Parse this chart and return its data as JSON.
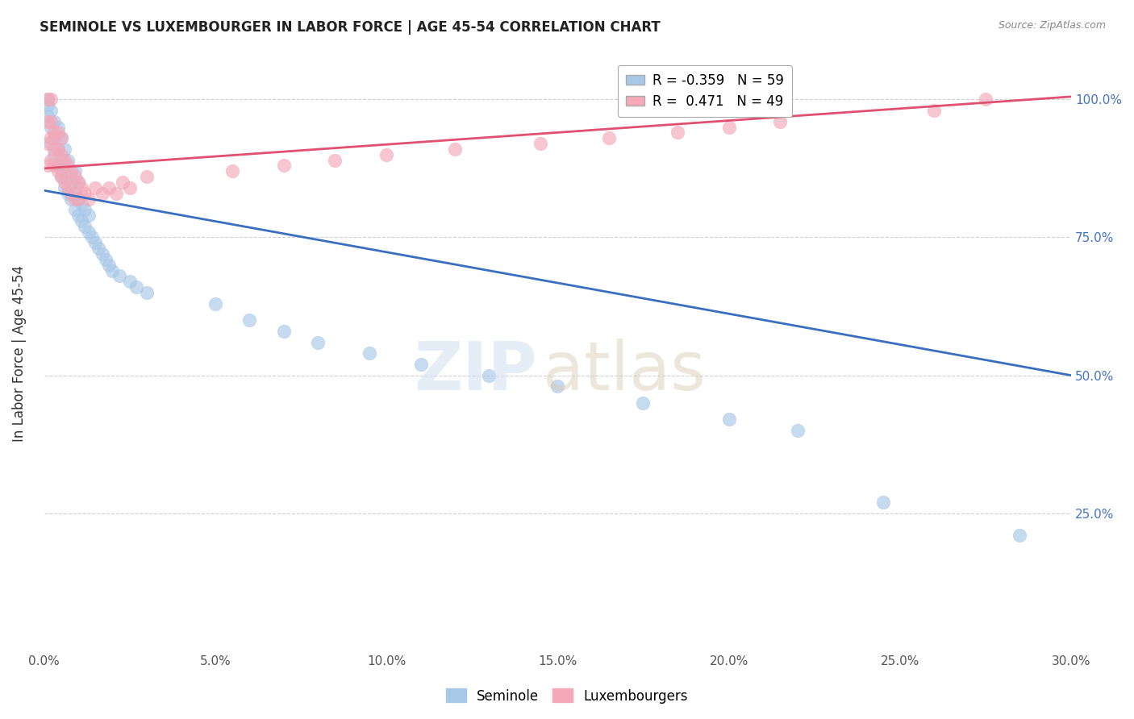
{
  "title": "SEMINOLE VS LUXEMBOURGER IN LABOR FORCE | AGE 45-54 CORRELATION CHART",
  "source": "Source: ZipAtlas.com",
  "ylabel": "In Labor Force | Age 45-54",
  "legend_seminole": "Seminole",
  "legend_luxembourgers": "Luxembourgers",
  "r_seminole": -0.359,
  "n_seminole": 59,
  "r_luxembourger": 0.471,
  "n_luxembourger": 49,
  "x_min": 0.0,
  "x_max": 0.3,
  "y_min": 0.0,
  "y_max": 1.08,
  "seminole_color": "#a8c8e8",
  "luxembourger_color": "#f4a8b8",
  "trend_seminole_color": "#3a6fbf",
  "trend_luxembourger_color": "#e05070",
  "xtick_labels": [
    "0.0%",
    "5.0%",
    "10.0%",
    "15.0%",
    "20.0%",
    "25.0%",
    "30.0%"
  ],
  "xtick_values": [
    0.0,
    0.05,
    0.1,
    0.15,
    0.2,
    0.25,
    0.3
  ],
  "ytick_labels_right": [
    "25.0%",
    "50.0%",
    "75.0%",
    "100.0%"
  ],
  "ytick_values_right": [
    0.25,
    0.5,
    0.75,
    1.0
  ],
  "seminole_x": [
    0.001,
    0.001,
    0.001,
    0.002,
    0.002,
    0.002,
    0.003,
    0.003,
    0.003,
    0.004,
    0.004,
    0.004,
    0.005,
    0.005,
    0.005,
    0.006,
    0.006,
    0.006,
    0.007,
    0.007,
    0.007,
    0.008,
    0.008,
    0.009,
    0.009,
    0.009,
    0.01,
    0.01,
    0.01,
    0.011,
    0.011,
    0.012,
    0.012,
    0.013,
    0.013,
    0.014,
    0.015,
    0.016,
    0.017,
    0.018,
    0.019,
    0.02,
    0.022,
    0.025,
    0.027,
    0.03,
    0.05,
    0.06,
    0.07,
    0.08,
    0.095,
    0.11,
    0.13,
    0.15,
    0.175,
    0.2,
    0.22,
    0.245,
    0.285
  ],
  "seminole_y": [
    0.97,
    1.0,
    0.99,
    0.95,
    0.92,
    0.98,
    0.9,
    0.93,
    0.96,
    0.88,
    0.91,
    0.95,
    0.86,
    0.89,
    0.93,
    0.84,
    0.88,
    0.91,
    0.83,
    0.86,
    0.89,
    0.82,
    0.85,
    0.8,
    0.83,
    0.87,
    0.79,
    0.82,
    0.85,
    0.78,
    0.81,
    0.77,
    0.8,
    0.76,
    0.79,
    0.75,
    0.74,
    0.73,
    0.72,
    0.71,
    0.7,
    0.69,
    0.68,
    0.67,
    0.66,
    0.65,
    0.63,
    0.6,
    0.58,
    0.56,
    0.54,
    0.52,
    0.5,
    0.48,
    0.45,
    0.42,
    0.4,
    0.27,
    0.21
  ],
  "luxembourger_x": [
    0.001,
    0.001,
    0.001,
    0.001,
    0.002,
    0.002,
    0.002,
    0.002,
    0.003,
    0.003,
    0.003,
    0.004,
    0.004,
    0.004,
    0.005,
    0.005,
    0.005,
    0.006,
    0.006,
    0.007,
    0.007,
    0.008,
    0.008,
    0.009,
    0.009,
    0.01,
    0.01,
    0.011,
    0.012,
    0.013,
    0.015,
    0.017,
    0.019,
    0.021,
    0.023,
    0.025,
    0.03,
    0.055,
    0.07,
    0.085,
    0.1,
    0.12,
    0.145,
    0.165,
    0.185,
    0.2,
    0.215,
    0.26,
    0.275
  ],
  "luxembourger_y": [
    0.88,
    0.92,
    0.96,
    1.0,
    0.89,
    0.93,
    0.96,
    1.0,
    0.88,
    0.91,
    0.94,
    0.87,
    0.91,
    0.94,
    0.86,
    0.9,
    0.93,
    0.85,
    0.89,
    0.84,
    0.88,
    0.83,
    0.87,
    0.82,
    0.86,
    0.82,
    0.85,
    0.84,
    0.83,
    0.82,
    0.84,
    0.83,
    0.84,
    0.83,
    0.85,
    0.84,
    0.86,
    0.87,
    0.88,
    0.89,
    0.9,
    0.91,
    0.92,
    0.93,
    0.94,
    0.95,
    0.96,
    0.98,
    1.0
  ]
}
